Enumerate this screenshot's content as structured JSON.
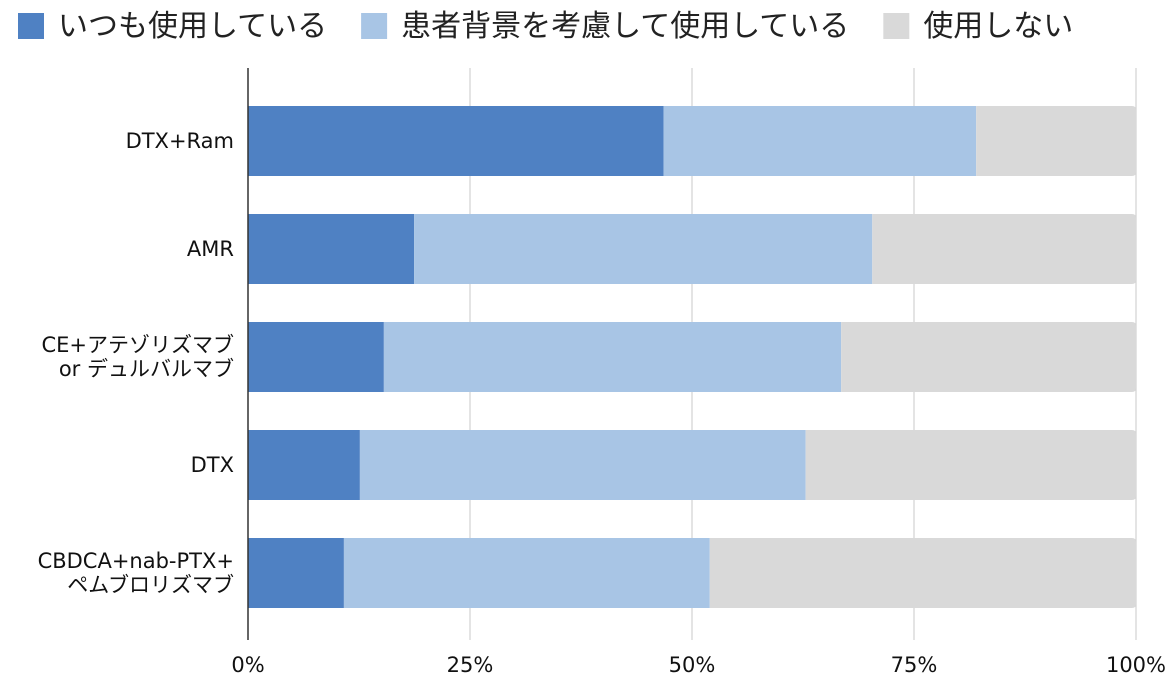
{
  "chart_data": {
    "type": "bar",
    "orientation": "horizontal",
    "stacked": "percent",
    "legend_position": "top-left",
    "grid": true,
    "categories": [
      [
        "DTX+Ram"
      ],
      [
        "AMR"
      ],
      [
        "CE+アテゾリズマブ",
        "or デュルバルマブ"
      ],
      [
        "DTX"
      ],
      [
        "CBDCA+nab-PTX+",
        "ペムブロリズマブ"
      ]
    ],
    "series": [
      {
        "name": "いつも使用している",
        "color": "#4f81c3",
        "values": [
          46.8,
          18.7,
          15.3,
          12.6,
          10.8
        ]
      },
      {
        "name": "患者背景を考慮して使用している",
        "color": "#a8c5e5",
        "values": [
          35.2,
          51.6,
          51.5,
          50.2,
          41.2
        ]
      },
      {
        "name": "使用しない",
        "color": "#d9d9d9",
        "values": [
          18.0,
          29.7,
          33.2,
          37.2,
          48.0
        ]
      }
    ],
    "xlim": [
      0,
      100
    ],
    "x_ticks": [
      "0%",
      "25%",
      "50%",
      "75%",
      "100%"
    ]
  }
}
